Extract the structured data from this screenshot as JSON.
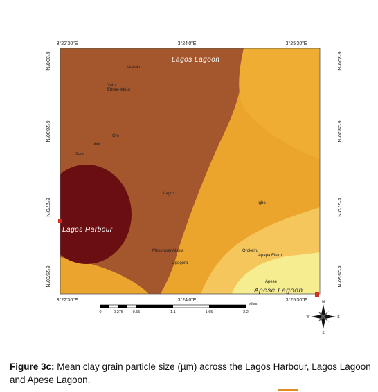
{
  "map": {
    "top_labels": [
      "3°22'30\"E",
      "3°24'0\"E",
      "3°25'30\"E"
    ],
    "bottom_labels": [
      "3°22'30\"E",
      "3°24'0\"E",
      "3°25'30\"E"
    ],
    "left_labels": [
      "6°30'0\"N",
      "6°28'30\"N",
      "6°27'0\"N",
      "6°25'30\"N"
    ],
    "right_labels": [
      "6°30'0\"N",
      "6°28'30\"N",
      "6°27'0\"N",
      "6°25'30\"N"
    ],
    "water": [
      "Lagos Lagoon",
      "Lagos Harbour",
      "Apese Lagoon"
    ],
    "places": [
      "Makoko",
      "Yaba",
      "Ebute-Metta",
      "Oto",
      "Iddo",
      "Sora",
      "Lagos",
      "Igbo",
      "MekunwenAlasia",
      "Ogogoro",
      "Orokeiru",
      "Apapa Eleko",
      "Apese"
    ],
    "scale": [
      "0",
      "0.275",
      "0.55",
      "1.1",
      "1.65",
      "2.2",
      "Miles"
    ],
    "compass": [
      "N",
      "S",
      "E",
      "W"
    ]
  },
  "caption": {
    "label": "Figure 3c:",
    "text": "Mean clay grain particle size (µm) across the Lagos Harbour, Lagos Lagoon and Apese Lagoon."
  }
}
